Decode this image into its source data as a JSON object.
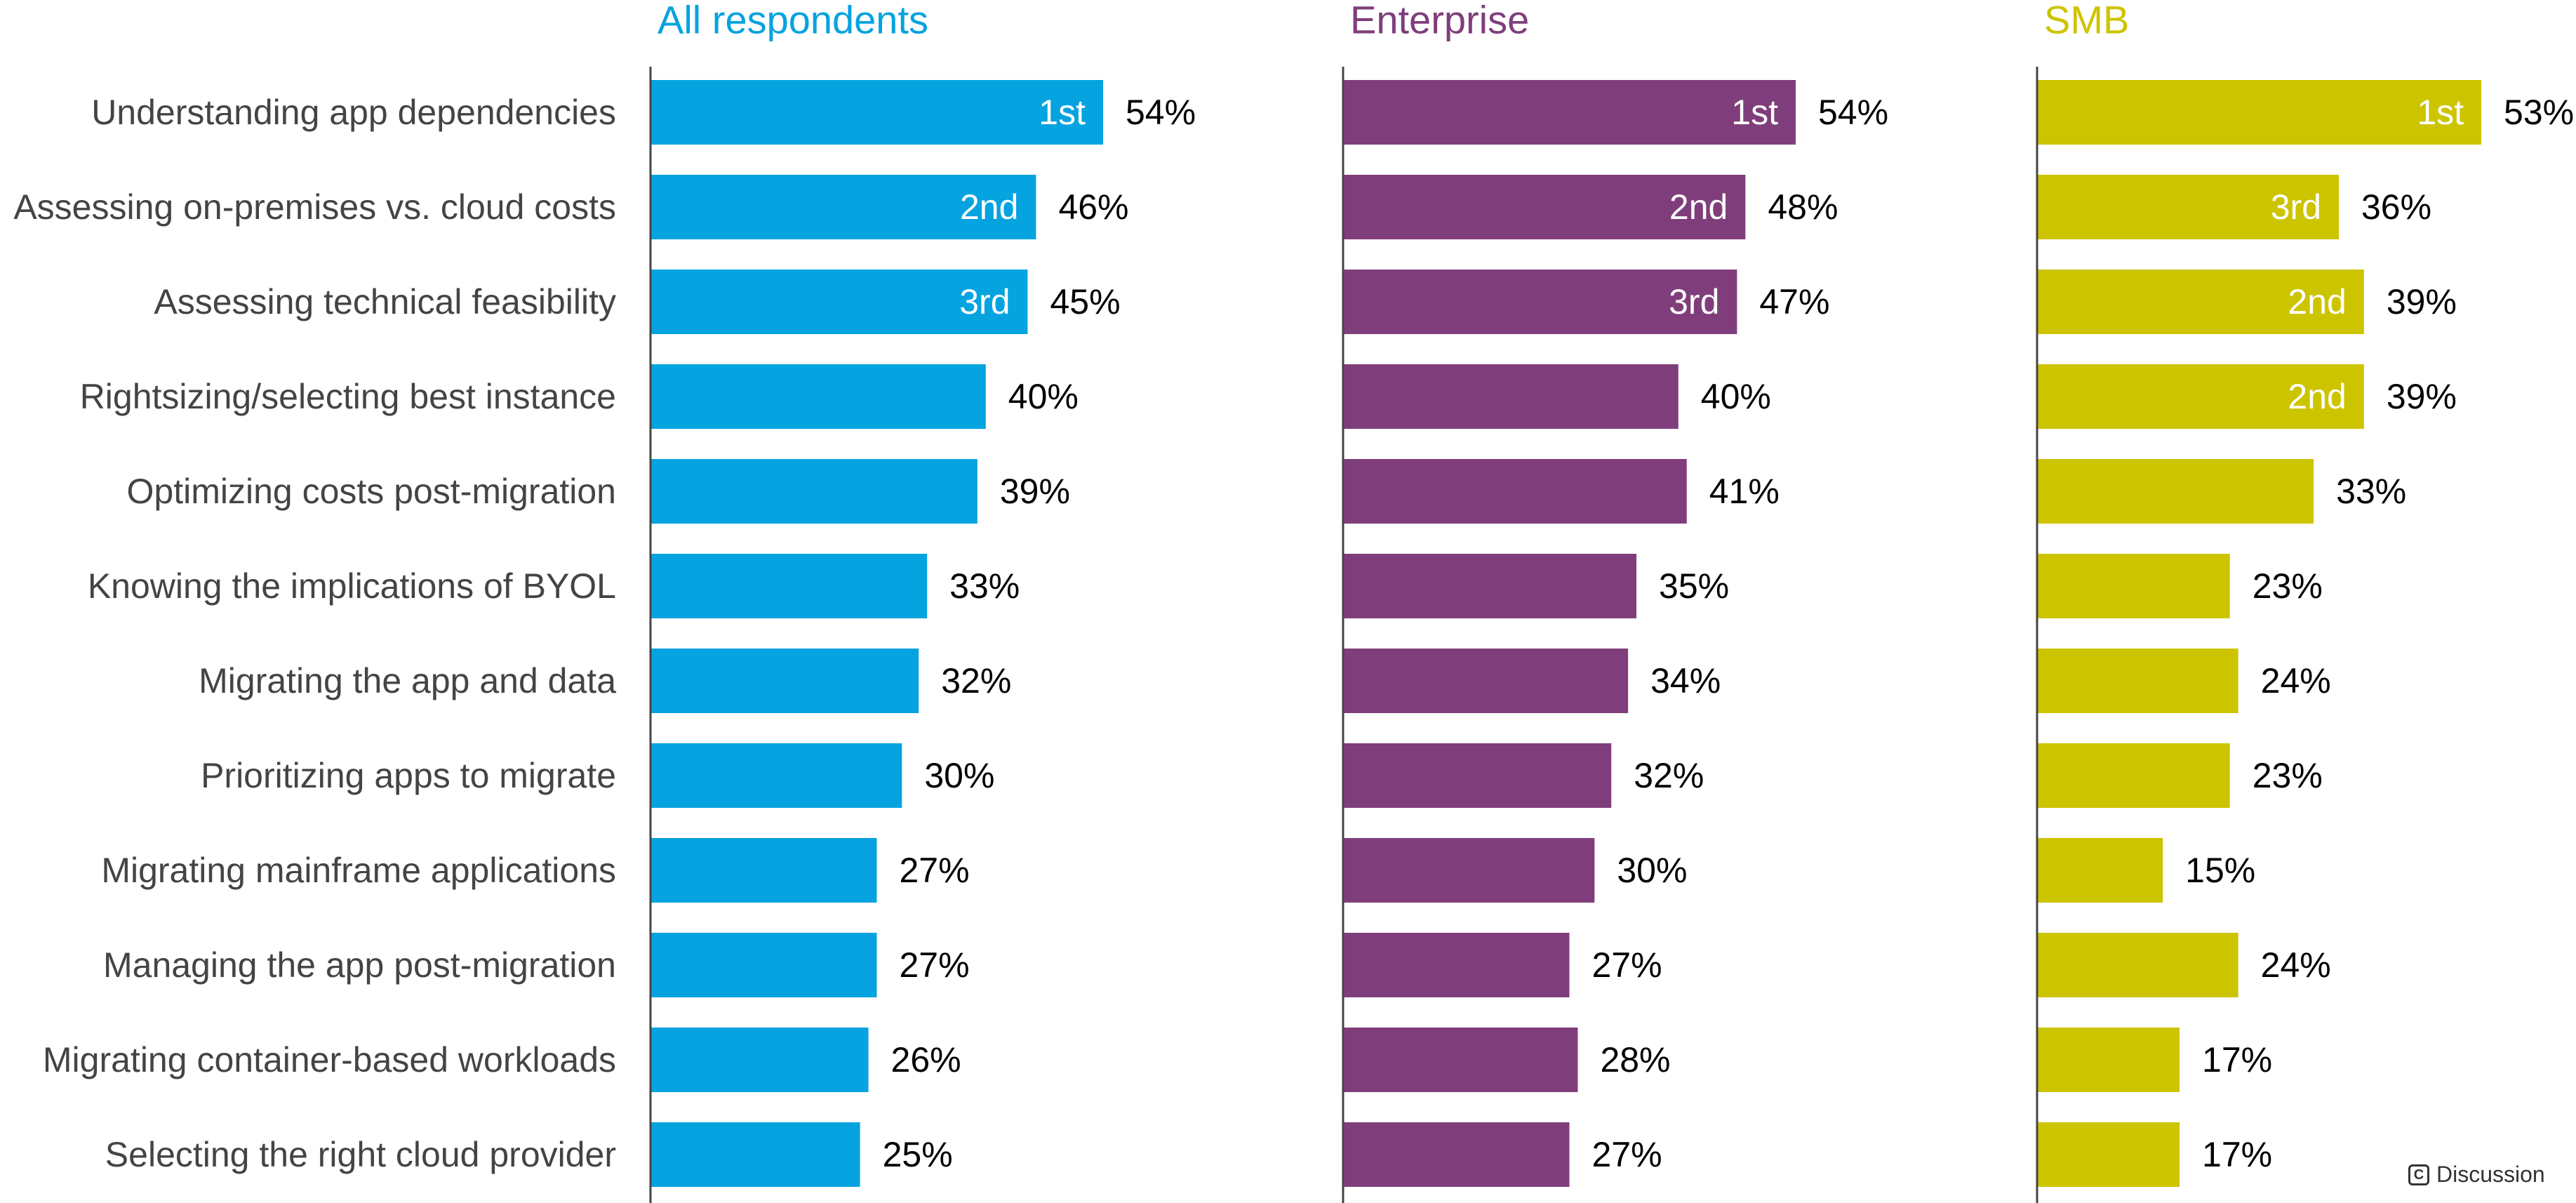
{
  "chart_data": {
    "type": "bar",
    "orientation": "horizontal",
    "categories": [
      "Understanding app dependencies",
      "Assessing on-premises vs. cloud costs",
      "Assessing technical feasibility",
      "Rightsizing/selecting best instance",
      "Optimizing costs post-migration",
      "Knowing the implications of BYOL",
      "Migrating the app and data",
      "Prioritizing apps to migrate",
      "Migrating mainframe applications",
      "Managing the app post-migration",
      "Migrating container-based workloads",
      "Selecting the right cloud provider"
    ],
    "value_suffix": "%",
    "xlim": [
      0,
      60
    ],
    "grid": false,
    "legend": "none",
    "panels": [
      {
        "name": "All respondents",
        "color": "#05a3df",
        "values": [
          54,
          46,
          45,
          40,
          39,
          33,
          32,
          30,
          27,
          27,
          26,
          25
        ],
        "ranks": [
          "1st",
          "2nd",
          "3rd",
          "",
          "",
          "",
          "",
          "",
          "",
          "",
          "",
          ""
        ]
      },
      {
        "name": "Enterprise",
        "color": "#7f3e7b",
        "values": [
          54,
          48,
          47,
          40,
          41,
          35,
          34,
          32,
          30,
          27,
          28,
          27
        ],
        "ranks": [
          "1st",
          "2nd",
          "3rd",
          "",
          "",
          "",
          "",
          "",
          "",
          "",
          "",
          ""
        ]
      },
      {
        "name": "SMB",
        "color": "#cdc400",
        "values": [
          53,
          36,
          39,
          39,
          33,
          23,
          24,
          23,
          15,
          24,
          17,
          17
        ],
        "ranks": [
          "1st",
          "3rd",
          "2nd",
          "2nd",
          "",
          "",
          "",
          "",
          "",
          "",
          "",
          ""
        ]
      }
    ]
  },
  "brand": {
    "icon": "copyright-icon",
    "icon_glyph": "C",
    "label": "Discussion"
  },
  "colors": {
    "category_text": "#444444",
    "axis": "#444444"
  }
}
